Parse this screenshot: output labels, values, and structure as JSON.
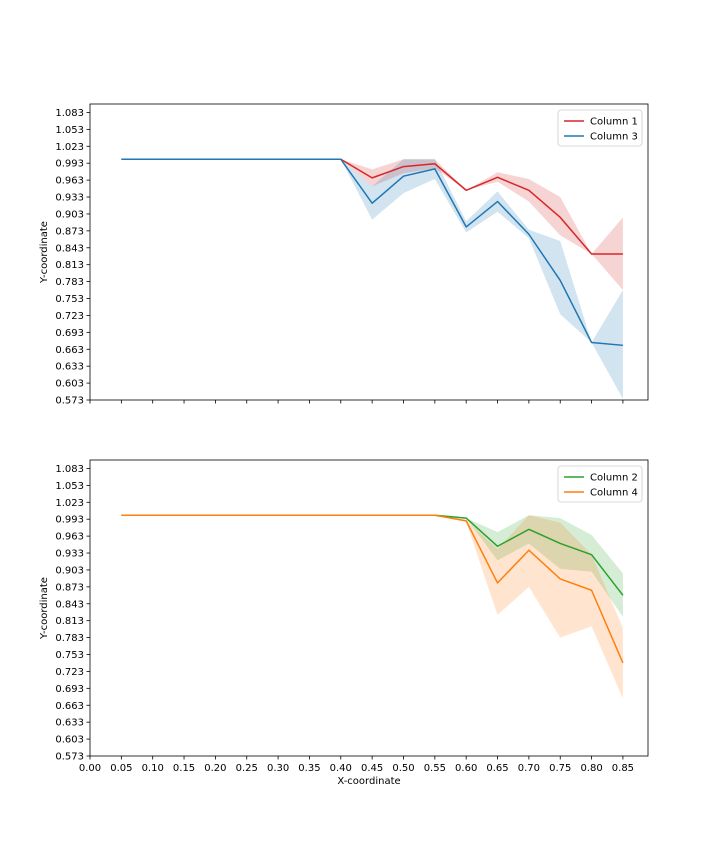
{
  "chart_data": [
    {
      "type": "line",
      "title": "",
      "xlabel": "",
      "ylabel": "Y-coordinate",
      "xlim": [
        0.0,
        0.89
      ],
      "ylim": [
        0.573,
        1.098
      ],
      "x_ticks": [
        "0.00",
        "0.05",
        "0.10",
        "0.15",
        "0.20",
        "0.25",
        "0.30",
        "0.35",
        "0.40",
        "0.45",
        "0.50",
        "0.55",
        "0.60",
        "0.65",
        "0.70",
        "0.75",
        "0.80",
        "0.85"
      ],
      "x_tick_labels_visible": false,
      "y_ticks": [
        "0.573",
        "0.603",
        "0.633",
        "0.663",
        "0.693",
        "0.723",
        "0.753",
        "0.783",
        "0.813",
        "0.843",
        "0.873",
        "0.903",
        "0.933",
        "0.963",
        "0.993",
        "1.023",
        "1.053",
        "1.083"
      ],
      "grid": false,
      "legend": "top-right",
      "x": [
        0.05,
        0.1,
        0.15,
        0.2,
        0.25,
        0.3,
        0.35,
        0.4,
        0.45,
        0.5,
        0.55,
        0.6,
        0.65,
        0.7,
        0.75,
        0.8,
        0.85
      ],
      "series": [
        {
          "name": "Column 1",
          "color": "#d62728",
          "values": [
            1.0,
            1.0,
            1.0,
            1.0,
            1.0,
            1.0,
            1.0,
            1.0,
            0.967,
            0.987,
            0.992,
            0.945,
            0.968,
            0.945,
            0.897,
            0.832,
            0.832
          ],
          "lower": [
            1.0,
            1.0,
            1.0,
            1.0,
            1.0,
            1.0,
            1.0,
            1.0,
            0.952,
            0.975,
            0.984,
            0.945,
            0.96,
            0.925,
            0.865,
            0.832,
            0.768
          ],
          "upper": [
            1.0,
            1.0,
            1.0,
            1.0,
            1.0,
            1.0,
            1.0,
            1.0,
            0.982,
            1.0,
            1.0,
            0.945,
            0.977,
            0.965,
            0.933,
            0.832,
            0.897
          ]
        },
        {
          "name": "Column 3",
          "color": "#1f77b4",
          "values": [
            1.0,
            1.0,
            1.0,
            1.0,
            1.0,
            1.0,
            1.0,
            1.0,
            0.922,
            0.97,
            0.983,
            0.88,
            0.925,
            0.867,
            0.785,
            0.675,
            0.67
          ],
          "lower": [
            1.0,
            1.0,
            1.0,
            1.0,
            1.0,
            1.0,
            1.0,
            1.0,
            0.893,
            0.94,
            0.965,
            0.87,
            0.907,
            0.86,
            0.725,
            0.675,
            0.575
          ],
          "upper": [
            1.0,
            1.0,
            1.0,
            1.0,
            1.0,
            1.0,
            1.0,
            1.0,
            0.952,
            1.0,
            1.0,
            0.89,
            0.943,
            0.875,
            0.855,
            0.675,
            0.768
          ]
        }
      ]
    },
    {
      "type": "line",
      "title": "",
      "xlabel": "X-coordinate",
      "ylabel": "Y-coordinate",
      "xlim": [
        0.0,
        0.89
      ],
      "ylim": [
        0.573,
        1.098
      ],
      "x_ticks": [
        "0.00",
        "0.05",
        "0.10",
        "0.15",
        "0.20",
        "0.25",
        "0.30",
        "0.35",
        "0.40",
        "0.45",
        "0.50",
        "0.55",
        "0.60",
        "0.65",
        "0.70",
        "0.75",
        "0.80",
        "0.85"
      ],
      "x_tick_labels_visible": true,
      "y_ticks": [
        "0.573",
        "0.603",
        "0.633",
        "0.663",
        "0.693",
        "0.723",
        "0.753",
        "0.783",
        "0.813",
        "0.843",
        "0.873",
        "0.903",
        "0.933",
        "0.963",
        "0.993",
        "1.023",
        "1.053",
        "1.083"
      ],
      "grid": false,
      "legend": "top-right",
      "x": [
        0.05,
        0.1,
        0.15,
        0.2,
        0.25,
        0.3,
        0.35,
        0.4,
        0.45,
        0.5,
        0.55,
        0.6,
        0.65,
        0.7,
        0.75,
        0.8,
        0.85
      ],
      "series": [
        {
          "name": "Column 2",
          "color": "#2ca02c",
          "values": [
            1.0,
            1.0,
            1.0,
            1.0,
            1.0,
            1.0,
            1.0,
            1.0,
            1.0,
            1.0,
            1.0,
            0.995,
            0.945,
            0.975,
            0.95,
            0.93,
            0.858
          ],
          "lower": [
            1.0,
            1.0,
            1.0,
            1.0,
            1.0,
            1.0,
            1.0,
            1.0,
            1.0,
            1.0,
            1.0,
            0.995,
            0.92,
            0.95,
            0.905,
            0.9,
            0.82
          ],
          "upper": [
            1.0,
            1.0,
            1.0,
            1.0,
            1.0,
            1.0,
            1.0,
            1.0,
            1.0,
            1.0,
            1.0,
            0.995,
            0.97,
            1.0,
            0.995,
            0.965,
            0.897
          ]
        },
        {
          "name": "Column 4",
          "color": "#ff7f0e",
          "values": [
            1.0,
            1.0,
            1.0,
            1.0,
            1.0,
            1.0,
            1.0,
            1.0,
            1.0,
            1.0,
            1.0,
            0.99,
            0.88,
            0.938,
            0.887,
            0.867,
            0.738
          ],
          "lower": [
            1.0,
            1.0,
            1.0,
            1.0,
            1.0,
            1.0,
            1.0,
            1.0,
            1.0,
            1.0,
            1.0,
            0.988,
            0.823,
            0.873,
            0.783,
            0.803,
            0.675
          ],
          "upper": [
            1.0,
            1.0,
            1.0,
            1.0,
            1.0,
            1.0,
            1.0,
            1.0,
            1.0,
            1.0,
            1.0,
            0.992,
            0.94,
            1.0,
            0.987,
            0.93,
            0.8
          ]
        }
      ]
    }
  ]
}
